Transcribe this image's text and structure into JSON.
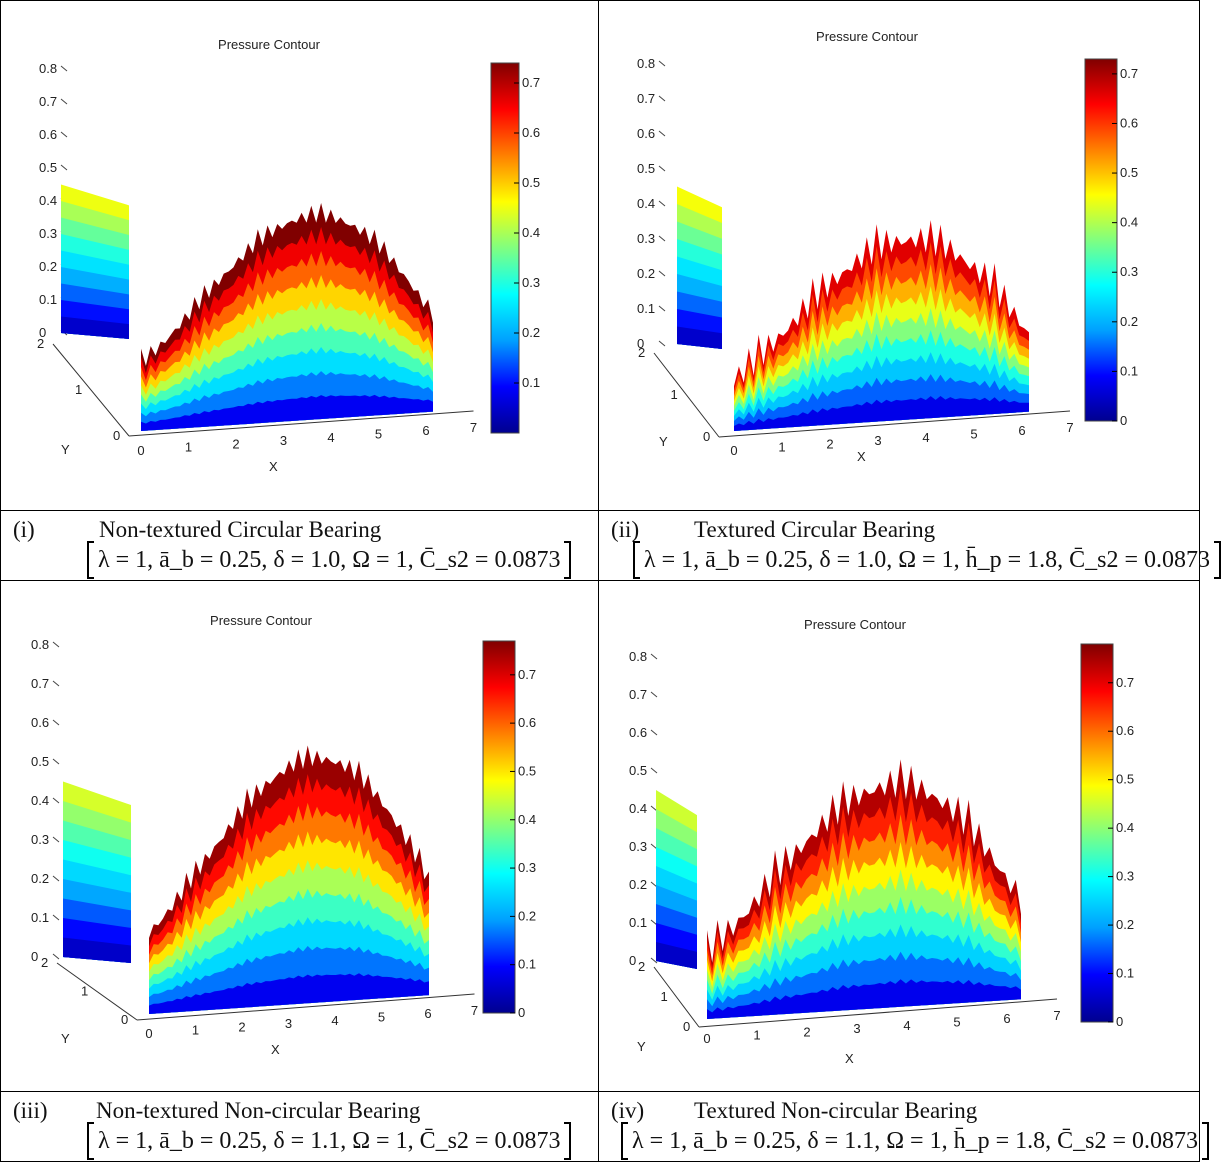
{
  "panels": [
    {
      "id": "i",
      "chart_data": {
        "type": "surface",
        "title": "Pressure Contour",
        "xlabel": "X",
        "ylabel": "Y",
        "z_ticks": [
          "0",
          "0.1",
          "0.2",
          "0.3",
          "0.4",
          "0.5",
          "0.6",
          "0.7",
          "0.8"
        ],
        "x_ticks": [
          "0",
          "1",
          "2",
          "3",
          "4",
          "5",
          "6",
          "7"
        ],
        "y_ticks": [
          "0",
          "1",
          "2"
        ],
        "colorbar_ticks": [
          "0.1",
          "0.2",
          "0.3",
          "0.4",
          "0.5",
          "0.6",
          "0.7"
        ],
        "colorbar_range": [
          0,
          0.74
        ],
        "peak_pressure": 0.74,
        "colormap": [
          "#00008f",
          "#0000ff",
          "#00a0ff",
          "#00ffff",
          "#80ff80",
          "#ffff00",
          "#ff8000",
          "#ff0000",
          "#800000"
        ]
      },
      "caption": {
        "label": "(i)",
        "title": "Non-textured  Circular Bearing",
        "params": "λ = 1,  ā_b = 0.25, δ = 1.0,  Ω = 1,   C̄_s2 = 0.0873"
      }
    },
    {
      "id": "ii",
      "chart_data": {
        "type": "surface",
        "title": "Pressure Contour",
        "xlabel": "X",
        "ylabel": "Y",
        "z_ticks": [
          "0",
          "0.1",
          "0.2",
          "0.3",
          "0.4",
          "0.5",
          "0.6",
          "0.7",
          "0.8"
        ],
        "x_ticks": [
          "0",
          "1",
          "2",
          "3",
          "4",
          "5",
          "6",
          "7"
        ],
        "y_ticks": [
          "0",
          "1",
          "2"
        ],
        "colorbar_ticks": [
          "0",
          "0.1",
          "0.2",
          "0.3",
          "0.4",
          "0.5",
          "0.6",
          "0.7"
        ],
        "colorbar_range": [
          0,
          0.73
        ],
        "peak_pressure": 0.66,
        "colormap": [
          "#00008f",
          "#0000ff",
          "#00a0ff",
          "#00ffff",
          "#80ff80",
          "#ffff00",
          "#ff8000",
          "#ff0000",
          "#800000"
        ]
      },
      "caption": {
        "label": "(ii)",
        "title": "Textured Circular Bearing",
        "params": "λ = 1,  ā_b = 0.25,   δ = 1.0, Ω = 1,  h̄_p = 1.8,  C̄_s2 = 0.0873"
      }
    },
    {
      "id": "iii",
      "chart_data": {
        "type": "surface",
        "title": "Pressure Contour",
        "xlabel": "X",
        "ylabel": "Y",
        "z_ticks": [
          "0",
          "0.1",
          "0.2",
          "0.3",
          "0.4",
          "0.5",
          "0.6",
          "0.7",
          "0.8"
        ],
        "x_ticks": [
          "0",
          "1",
          "2",
          "3",
          "4",
          "5",
          "6",
          "7"
        ],
        "y_ticks": [
          "0",
          "1",
          "2"
        ],
        "colorbar_ticks": [
          "0",
          "0.1",
          "0.2",
          "0.3",
          "0.4",
          "0.5",
          "0.6",
          "0.7"
        ],
        "colorbar_range": [
          0,
          0.77
        ],
        "peak_pressure": 0.75,
        "colormap": [
          "#00008f",
          "#0000ff",
          "#00a0ff",
          "#00ffff",
          "#80ff80",
          "#ffff00",
          "#ff8000",
          "#ff0000",
          "#800000"
        ]
      },
      "caption": {
        "label": "(iii)",
        "title": "Non-textured Non-circular Bearing",
        "params": "λ = 1,  ā_b = 0.25, δ = 1.1,  Ω = 1,   C̄_s2 = 0.0873"
      }
    },
    {
      "id": "iv",
      "chart_data": {
        "type": "surface",
        "title": "Pressure Contour",
        "xlabel": "X",
        "ylabel": "Y",
        "z_ticks": [
          "0",
          "0.1",
          "0.2",
          "0.3",
          "0.4",
          "0.5",
          "0.6",
          "0.7",
          "0.8"
        ],
        "x_ticks": [
          "0",
          "1",
          "2",
          "3",
          "4",
          "5",
          "6",
          "7"
        ],
        "y_ticks": [
          "0",
          "1",
          "2"
        ],
        "colorbar_ticks": [
          "0",
          "0.1",
          "0.2",
          "0.3",
          "0.4",
          "0.5",
          "0.6",
          "0.7"
        ],
        "colorbar_range": [
          0,
          0.78
        ],
        "peak_pressure": 0.74,
        "colormap": [
          "#00008f",
          "#0000ff",
          "#00a0ff",
          "#00ffff",
          "#80ff80",
          "#ffff00",
          "#ff8000",
          "#ff0000",
          "#800000"
        ]
      },
      "caption": {
        "label": "(iv)",
        "title": "Textured  Non-circular Bearing",
        "params": "λ = 1,  ā_b = 0.25,   δ = 1.1, Ω = 1,  h̄_p = 1.8,  C̄_s2 = 0.0873"
      }
    }
  ]
}
